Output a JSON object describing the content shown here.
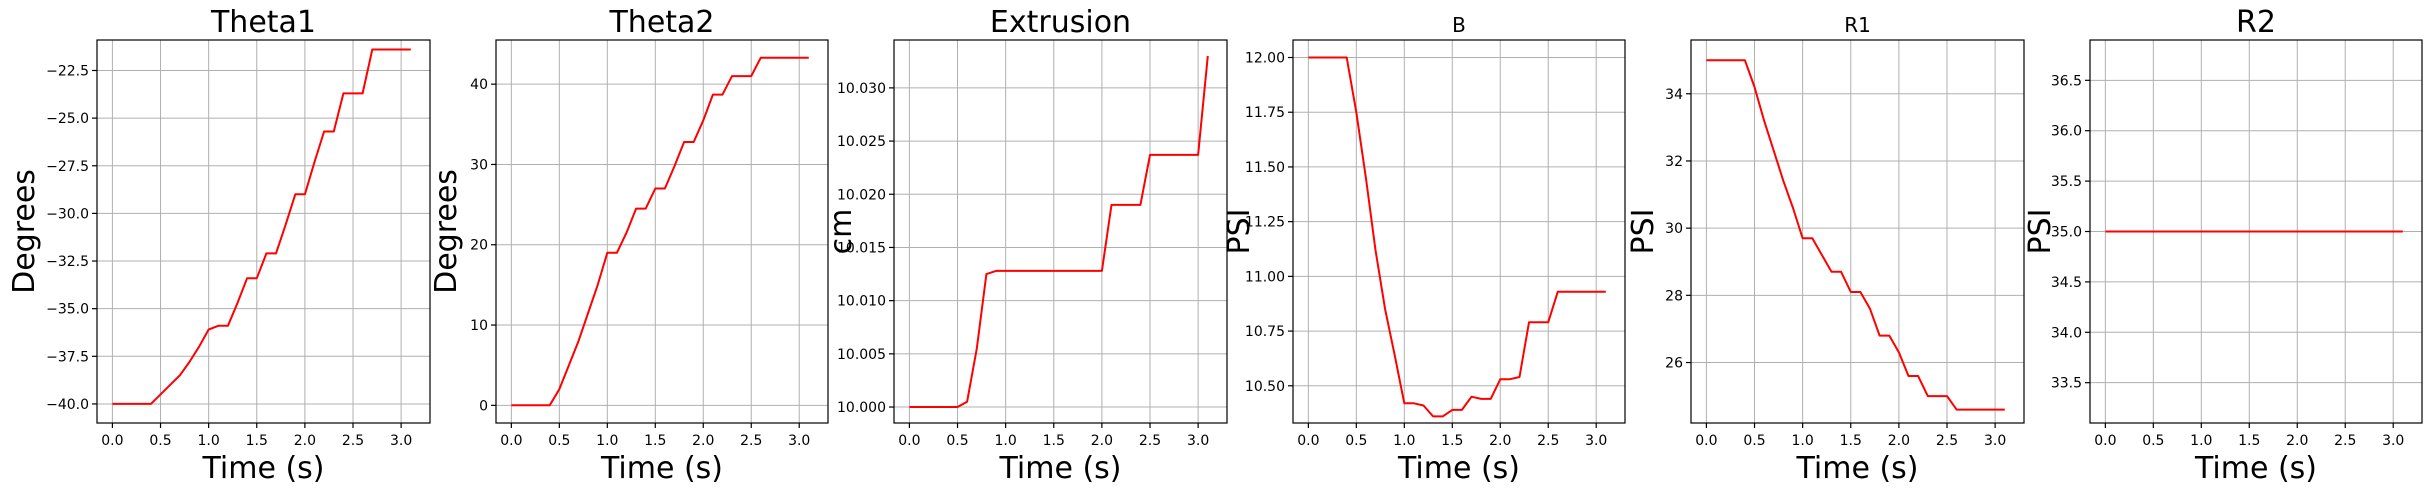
{
  "chart_data": [
    {
      "type": "line",
      "title": "Theta1",
      "xlabel": "Time (s)",
      "ylabel": "Degrees",
      "xlim": [
        -0.16,
        3.3
      ],
      "ylim": [
        -41.0,
        -20.9
      ],
      "xticks": [
        0.0,
        0.5,
        1.0,
        1.5,
        2.0,
        2.5,
        3.0
      ],
      "xtick_labels": [
        "0.0",
        "0.5",
        "1.0",
        "1.5",
        "2.0",
        "2.5",
        "3.0"
      ],
      "yticks": [
        -40.0,
        -37.5,
        -35.0,
        -32.5,
        -30.0,
        -27.5,
        -25.0,
        -22.5
      ],
      "ytick_labels": [
        "−40.0",
        "−37.5",
        "−35.0",
        "−32.5",
        "−30.0",
        "−27.5",
        "−25.0",
        "−22.5"
      ],
      "grid": true,
      "series": [
        {
          "color": "#ff0000",
          "x": [
            0.0,
            0.2,
            0.4,
            0.5,
            0.6,
            0.7,
            0.8,
            0.9,
            1.0,
            1.1,
            1.2,
            1.3,
            1.4,
            1.5,
            1.6,
            1.7,
            1.8,
            1.9,
            2.0,
            2.1,
            2.2,
            2.3,
            2.4,
            2.5,
            2.6,
            2.7,
            2.8,
            2.9,
            3.0,
            3.1
          ],
          "y": [
            -40.0,
            -40.0,
            -40.0,
            -39.5,
            -39.0,
            -38.5,
            -37.8,
            -37.0,
            -36.1,
            -35.9,
            -35.9,
            -34.7,
            -33.4,
            -33.4,
            -32.1,
            -32.1,
            -30.6,
            -29.0,
            -29.0,
            -27.3,
            -25.7,
            -25.7,
            -23.7,
            -23.7,
            -23.7,
            -21.4,
            -21.4,
            -21.4,
            -21.4,
            -21.4
          ]
        }
      ]
    },
    {
      "type": "line",
      "title": "Theta2",
      "xlabel": "Time (s)",
      "ylabel": "Degrees",
      "xlim": [
        -0.16,
        3.3
      ],
      "ylim": [
        -2.2,
        45.5
      ],
      "xticks": [
        0.0,
        0.5,
        1.0,
        1.5,
        2.0,
        2.5,
        3.0
      ],
      "xtick_labels": [
        "0.0",
        "0.5",
        "1.0",
        "1.5",
        "2.0",
        "2.5",
        "3.0"
      ],
      "yticks": [
        0,
        10,
        20,
        30,
        40
      ],
      "ytick_labels": [
        "0",
        "10",
        "20",
        "30",
        "40"
      ],
      "grid": true,
      "series": [
        {
          "color": "#ff0000",
          "x": [
            0.0,
            0.2,
            0.4,
            0.5,
            0.6,
            0.7,
            0.8,
            0.9,
            1.0,
            1.1,
            1.2,
            1.3,
            1.4,
            1.5,
            1.6,
            1.7,
            1.8,
            1.9,
            2.0,
            2.1,
            2.2,
            2.3,
            2.4,
            2.5,
            2.6,
            2.7,
            2.8,
            2.9,
            3.0,
            3.1
          ],
          "y": [
            0.0,
            0.0,
            0.0,
            2.0,
            5.0,
            8.0,
            11.5,
            15.0,
            19.0,
            19.0,
            21.5,
            24.5,
            24.5,
            27.0,
            27.0,
            29.8,
            32.8,
            32.8,
            35.5,
            38.7,
            38.7,
            41.0,
            41.0,
            41.0,
            43.3,
            43.3,
            43.3,
            43.3,
            43.3,
            43.3
          ]
        }
      ]
    },
    {
      "type": "line",
      "title": "Extrusion",
      "xlabel": "Time (s)",
      "ylabel": "cm",
      "xlim": [
        -0.16,
        3.3
      ],
      "ylim": [
        9.9985,
        10.0345
      ],
      "xticks": [
        0.0,
        0.5,
        1.0,
        1.5,
        2.0,
        2.5,
        3.0
      ],
      "xtick_labels": [
        "0.0",
        "0.5",
        "1.0",
        "1.5",
        "2.0",
        "2.5",
        "3.0"
      ],
      "yticks": [
        10.0,
        10.005,
        10.01,
        10.015,
        10.02,
        10.025,
        10.03
      ],
      "ytick_labels": [
        "10.000",
        "10.005",
        "10.010",
        "10.015",
        "10.020",
        "10.025",
        "10.030"
      ],
      "grid": true,
      "series": [
        {
          "color": "#ff0000",
          "x": [
            0.0,
            0.3,
            0.5,
            0.6,
            0.7,
            0.8,
            0.9,
            1.0,
            1.5,
            2.0,
            2.1,
            2.2,
            2.4,
            2.5,
            2.7,
            2.9,
            3.0,
            3.1
          ],
          "y": [
            10.0,
            10.0,
            10.0,
            10.0005,
            10.0055,
            10.0125,
            10.0128,
            10.0128,
            10.0128,
            10.0128,
            10.019,
            10.019,
            10.019,
            10.0237,
            10.0237,
            10.0237,
            10.0237,
            10.033
          ]
        }
      ]
    },
    {
      "type": "line",
      "title": "B",
      "xlabel": "Time (s)",
      "ylabel": "PSI",
      "xlim": [
        -0.16,
        3.3
      ],
      "ylim": [
        10.33,
        12.08
      ],
      "xticks": [
        0.0,
        0.5,
        1.0,
        1.5,
        2.0,
        2.5,
        3.0
      ],
      "xtick_labels": [
        "0.0",
        "0.5",
        "1.0",
        "1.5",
        "2.0",
        "2.5",
        "3.0"
      ],
      "yticks": [
        10.5,
        10.75,
        11.0,
        11.25,
        11.5,
        11.75,
        12.0
      ],
      "ytick_labels": [
        "10.50",
        "10.75",
        "11.00",
        "11.25",
        "11.50",
        "11.75",
        "12.00"
      ],
      "grid": true,
      "series": [
        {
          "color": "#ff0000",
          "x": [
            0.0,
            0.2,
            0.4,
            0.5,
            0.6,
            0.7,
            0.8,
            0.9,
            1.0,
            1.1,
            1.2,
            1.3,
            1.4,
            1.5,
            1.6,
            1.7,
            1.8,
            1.9,
            2.0,
            2.1,
            2.2,
            2.3,
            2.4,
            2.5,
            2.6,
            2.7,
            2.8,
            2.9,
            3.0,
            3.1
          ],
          "y": [
            12.0,
            12.0,
            12.0,
            11.75,
            11.45,
            11.12,
            10.85,
            10.64,
            10.42,
            10.42,
            10.41,
            10.36,
            10.36,
            10.39,
            10.39,
            10.45,
            10.44,
            10.44,
            10.53,
            10.53,
            10.54,
            10.79,
            10.79,
            10.79,
            10.93,
            10.93,
            10.93,
            10.93,
            10.93,
            10.93
          ]
        }
      ]
    },
    {
      "type": "line",
      "title": "R1",
      "xlabel": "Time (s)",
      "ylabel": "PSI",
      "xlim": [
        -0.16,
        3.3
      ],
      "ylim": [
        24.2,
        35.6
      ],
      "xticks": [
        0.0,
        0.5,
        1.0,
        1.5,
        2.0,
        2.5,
        3.0
      ],
      "xtick_labels": [
        "0.0",
        "0.5",
        "1.0",
        "1.5",
        "2.0",
        "2.5",
        "3.0"
      ],
      "yticks": [
        26,
        28,
        30,
        32,
        34
      ],
      "ytick_labels": [
        "26",
        "28",
        "30",
        "32",
        "34"
      ],
      "grid": true,
      "series": [
        {
          "color": "#ff0000",
          "x": [
            0.0,
            0.2,
            0.4,
            0.5,
            0.6,
            0.7,
            0.8,
            0.9,
            1.0,
            1.1,
            1.2,
            1.3,
            1.4,
            1.5,
            1.6,
            1.7,
            1.8,
            1.9,
            2.0,
            2.1,
            2.2,
            2.3,
            2.4,
            2.5,
            2.6,
            2.7,
            2.8,
            2.9,
            3.0,
            3.1
          ],
          "y": [
            35.0,
            35.0,
            35.0,
            34.2,
            33.2,
            32.3,
            31.4,
            30.6,
            29.7,
            29.7,
            29.2,
            28.7,
            28.7,
            28.1,
            28.1,
            27.6,
            26.8,
            26.8,
            26.3,
            25.6,
            25.6,
            25.0,
            25.0,
            25.0,
            24.6,
            24.6,
            24.6,
            24.6,
            24.6,
            24.6
          ]
        }
      ]
    },
    {
      "type": "line",
      "title": "R2",
      "xlabel": "Time (s)",
      "ylabel": "PSI",
      "xlim": [
        -0.16,
        3.3
      ],
      "ylim": [
        33.1,
        36.9
      ],
      "xticks": [
        0.0,
        0.5,
        1.0,
        1.5,
        2.0,
        2.5,
        3.0
      ],
      "xtick_labels": [
        "0.0",
        "0.5",
        "1.0",
        "1.5",
        "2.0",
        "2.5",
        "3.0"
      ],
      "yticks": [
        33.5,
        34.0,
        34.5,
        35.0,
        35.5,
        36.0,
        36.5
      ],
      "ytick_labels": [
        "33.5",
        "34.0",
        "34.5",
        "35.0",
        "35.5",
        "36.0",
        "36.5"
      ],
      "grid": true,
      "series": [
        {
          "color": "#ff0000",
          "x": [
            0.0,
            3.1
          ],
          "y": [
            35.0,
            35.0
          ]
        }
      ]
    }
  ]
}
